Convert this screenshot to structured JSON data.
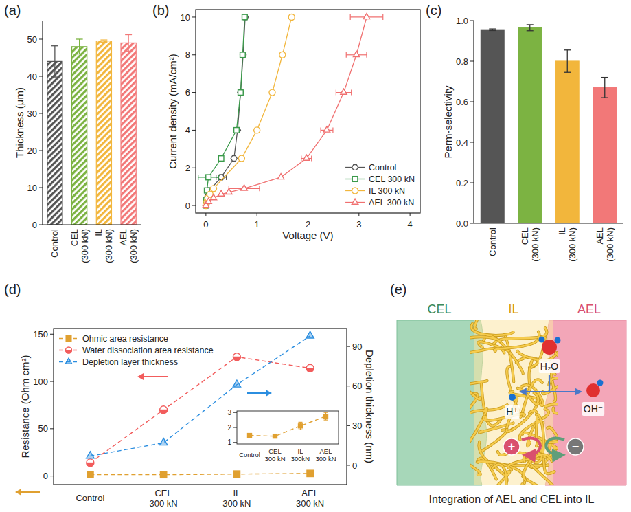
{
  "panels": [
    "(a)",
    "(b)",
    "(c)",
    "(d)",
    "(e)"
  ],
  "chart_data": [
    {
      "type": "bar",
      "y_label": "Thickness (µm)",
      "categories": [
        "Control",
        "CEL (300 kN)",
        "IL (300 kN)",
        "AEL (300 kN)"
      ],
      "values": [
        44,
        48,
        49.5,
        49
      ],
      "errors": [
        4.2,
        2,
        0.3,
        2.2
      ],
      "colors": [
        "#555555",
        "#7cb342",
        "#f2b63c",
        "#f27878"
      ],
      "ylim": [
        0,
        55
      ],
      "yticks": [
        0,
        10,
        20,
        30,
        40,
        50
      ]
    },
    {
      "type": "line",
      "x_label": "Voltage (V)",
      "y_label": "Current density (mA/cm²)",
      "xlim": [
        -0.2,
        4.2
      ],
      "xticks": [
        0,
        1,
        2,
        3,
        4
      ],
      "ylim": [
        -0.4,
        10.4
      ],
      "yticks": [
        0,
        2,
        4,
        6,
        8,
        10
      ],
      "legend": "lower right",
      "series": [
        {
          "name": "Control",
          "color": "#555555",
          "marker": "hexagon",
          "line_style": "solid",
          "x": [
            0,
            0.01,
            0.02,
            0.04,
            0.07,
            0.3,
            0.55,
            0.62,
            0.68,
            0.73,
            0.77
          ],
          "values": [
            0,
            0.1,
            0.3,
            0.5,
            0.8,
            1.5,
            2.5,
            4,
            6,
            8,
            10
          ],
          "x_errors": [
            null,
            null,
            null,
            null,
            null,
            0.1,
            null,
            null,
            null,
            null,
            0.03
          ]
        },
        {
          "name": "CEL 300 kN",
          "color": "#3a9a4a",
          "marker": "square",
          "line_style": "solid",
          "x": [
            0,
            0.01,
            0.02,
            0.05,
            0.3,
            0.6,
            0.68,
            0.72,
            0.76
          ],
          "values": [
            0,
            0.3,
            0.8,
            1.5,
            2.5,
            4,
            6,
            8,
            10
          ],
          "x_errors": [
            null,
            null,
            null,
            0.2,
            null,
            null,
            null,
            null,
            null
          ]
        },
        {
          "name": "IL 300 kN",
          "color": "#f2b63c",
          "marker": "circle",
          "line_style": "solid",
          "x": [
            0,
            0.02,
            0.04,
            0.08,
            0.15,
            0.7,
            1.0,
            1.3,
            1.5,
            1.68
          ],
          "values": [
            0,
            0.2,
            0.4,
            0.6,
            0.9,
            2.5,
            4,
            6,
            8,
            10
          ],
          "x_errors": [
            null,
            null,
            null,
            null,
            null,
            null,
            null,
            null,
            null,
            null
          ]
        },
        {
          "name": "AEL 300 kN",
          "color": "#f07070",
          "marker": "triangle",
          "line_style": "solid",
          "x": [
            0,
            0.05,
            0.15,
            0.3,
            0.45,
            0.75,
            1.47,
            1.97,
            2.37,
            2.7,
            2.95,
            3.15
          ],
          "values": [
            0,
            0.2,
            0.4,
            0.6,
            0.7,
            0.9,
            1.5,
            2.5,
            4,
            6,
            8,
            10
          ],
          "x_errors": [
            null,
            null,
            null,
            null,
            null,
            0.3,
            null,
            0.1,
            0.12,
            0.15,
            0.2,
            0.32
          ]
        }
      ]
    },
    {
      "type": "bar",
      "y_label": "Perm-selectivity",
      "categories": [
        "Control",
        "CEL (300 kN)",
        "IL (300 kN)",
        "AEL (300 kN)"
      ],
      "values": [
        0.955,
        0.965,
        0.8,
        0.67
      ],
      "errors": [
        0.004,
        0.015,
        0.055,
        0.05
      ],
      "colors": [
        "#555555",
        "#7cb342",
        "#f2b63c",
        "#f27878"
      ],
      "ylim": [
        0,
        1
      ],
      "yticks": [
        {
          "value": 0,
          "label": "0.0"
        },
        0.2,
        0.4,
        0.6,
        0.8,
        {
          "value": 1,
          "label": "1.0"
        }
      ]
    },
    {
      "type": "line",
      "y_label": "Resistance (Ohm cm²)",
      "y2_label": "Depletion thickness (nm)",
      "categories": [
        "Control",
        "CEL 300 kN",
        "IL 300 kN",
        "AEL 300 kN"
      ],
      "ylim": [
        -9,
        156
      ],
      "yticks": [
        0,
        50,
        100,
        150
      ],
      "y2lim": [
        -14.6,
        103.6
      ],
      "y2ticks": [
        0,
        30,
        60,
        90
      ],
      "legend": "upper left",
      "series": [
        {
          "name": "Ohmic area resistance",
          "color": "#e0a030",
          "marker": "square",
          "line_style": "dashed",
          "values": [
            1.47,
            1.42,
            2.1,
            2.75
          ],
          "errors": [
            0.05,
            0.08,
            0.25,
            0.25
          ]
        },
        {
          "name": "Water dissociation area resistance",
          "color": "#f25c5c",
          "marker": "half_circle",
          "line_style": "dashed",
          "values": [
            14,
            70,
            126,
            114
          ]
        },
        {
          "name": "Depletion layer thickness",
          "color": "#2b8ee0",
          "marker": "triangle",
          "line_style": "dashed",
          "axis": "y2",
          "values": [
            7,
            17,
            61,
            98
          ]
        }
      ]
    },
    {
      "type": "line",
      "categories": [
        "Control",
        "CEL 300 kN",
        "IL 300kN",
        "AEL 300 kN"
      ],
      "ylim": [
        0.9,
        3.1
      ],
      "yticks": [
        1,
        2,
        3
      ],
      "values": [
        1.47,
        1.42,
        2.1,
        2.75
      ],
      "errors": [
        0.05,
        0.08,
        0.25,
        0.25
      ],
      "color": "#e0a030",
      "marker": "square",
      "line_style": "dashed"
    }
  ],
  "diagram": {
    "labels": [
      "CEL",
      "IL",
      "AEL"
    ],
    "molecule": "H₂O",
    "ions": [
      "H⁺",
      "OH⁻"
    ],
    "charges": [
      "+",
      "−"
    ],
    "caption": "Integration of AEL and CEL into IL"
  }
}
